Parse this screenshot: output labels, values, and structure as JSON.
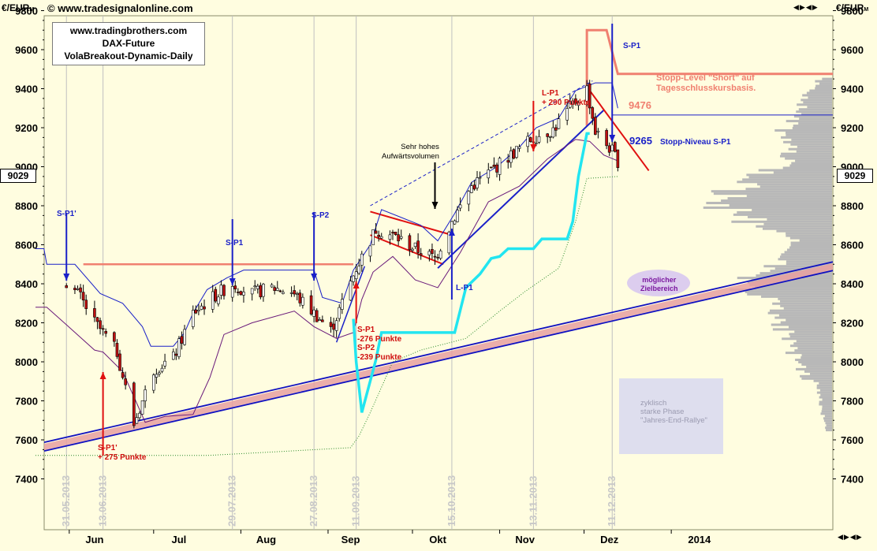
{
  "header": {
    "left_unit": "€/EUR",
    "left_unit_sub": "M",
    "copyright": "© www.tradesignalonline.com",
    "right_unit": "€/EUR",
    "right_unit_sub": "M",
    "nav_buttons": "◀▶◀▶",
    "corner_buttons": "◀▶◀▶"
  },
  "title_box": {
    "line1": "www.tradingbrothers.com",
    "line2": "DAX-Future",
    "line3": "VolaBreakout-Dynamic-Daily"
  },
  "price_tag_left": "9029",
  "price_tag_right": "9029",
  "colors": {
    "background": "#fffde0",
    "resistance": "#f08070",
    "trendline_blue": "#1010c0",
    "trendline_pink": "#e8a0a0",
    "indicator_cyan": "#22e5f0",
    "signal_blue": "#1a20c8",
    "signal_red": "#e01010",
    "volume_gray": "#b8b8b8",
    "envelope_purple": "#6a1a7a"
  },
  "annotations": {
    "sp1_prime": "S-P1'",
    "sp1_first": "S-P1",
    "sp2": "S-P2",
    "lp1_blue": "L-P1",
    "sp1_top": "S-P1",
    "sp1_red": "S-P1\n-276 Punkte",
    "sp2_red": "S-P2\n-239 Punkte",
    "sp1_prime_red": "S-P1'\n+ 275 Punkte",
    "lp1_red": "L-P1\n+ 290 Punkte",
    "volume_note": "Sehr hohes\nAufwärtsvolumen",
    "stop_short": "Stopp-Level \"Short\" auf\nTagesschlusskursbasis.",
    "stop_short_value": "9476",
    "stop_sp1_value": "9265",
    "stop_sp1_label": "Stopp-Niveau S-P1",
    "target_zone": "möglicher\nZielbereich",
    "cyclic_phase": "zyklisch\nstarke Phase\n\"Jahres-End-Rallye\""
  },
  "chart_data": {
    "type": "candlestick",
    "title": "DAX-Future VolaBreakout-Dynamic-Daily",
    "ylim": [
      7200,
      10050
    ],
    "y_ticks": [
      7400,
      7600,
      7800,
      8000,
      8200,
      8400,
      8600,
      8800,
      9000,
      9200,
      9400,
      9600,
      9800
    ],
    "y_tick_labels": [
      "7400",
      "7600",
      "7800",
      "8000",
      "8200",
      "8400",
      "8600",
      "8800",
      "9000",
      "9200",
      "9400",
      "9600",
      "9800"
    ],
    "x_month_labels": [
      "Jun",
      "Jul",
      "Aug",
      "Sep",
      "Okt",
      "Nov",
      "Dez",
      "2014"
    ],
    "x_signal_dates": [
      "31.05.2013",
      "13.06.2013",
      "29.07.2013",
      "27.08.2013",
      "11.09.2013",
      "15.10.2013",
      "13.11.2013",
      "11.12.2013"
    ],
    "grid": "vertical lines at signal dates",
    "close_series": [
      {
        "date": "2013-05-31",
        "close": 8410
      },
      {
        "date": "2013-06-05",
        "close": 8330
      },
      {
        "date": "2013-06-10",
        "close": 8200
      },
      {
        "date": "2013-06-13",
        "close": 8150
      },
      {
        "date": "2013-06-18",
        "close": 8050
      },
      {
        "date": "2013-06-24",
        "close": 7680
      },
      {
        "date": "2013-07-01",
        "close": 7960
      },
      {
        "date": "2013-07-08",
        "close": 8020
      },
      {
        "date": "2013-07-15",
        "close": 8250
      },
      {
        "date": "2013-07-22",
        "close": 8330
      },
      {
        "date": "2013-07-29",
        "close": 8400
      },
      {
        "date": "2013-08-05",
        "close": 8350
      },
      {
        "date": "2013-08-12",
        "close": 8380
      },
      {
        "date": "2013-08-19",
        "close": 8360
      },
      {
        "date": "2013-08-27",
        "close": 8250
      },
      {
        "date": "2013-09-02",
        "close": 8160
      },
      {
        "date": "2013-09-06",
        "close": 8300
      },
      {
        "date": "2013-09-11",
        "close": 8480
      },
      {
        "date": "2013-09-18",
        "close": 8680
      },
      {
        "date": "2013-09-25",
        "close": 8640
      },
      {
        "date": "2013-10-02",
        "close": 8580
      },
      {
        "date": "2013-10-09",
        "close": 8530
      },
      {
        "date": "2013-10-15",
        "close": 8720
      },
      {
        "date": "2013-10-22",
        "close": 8900
      },
      {
        "date": "2013-10-29",
        "close": 8980
      },
      {
        "date": "2013-11-05",
        "close": 9060
      },
      {
        "date": "2013-11-13",
        "close": 9150
      },
      {
        "date": "2013-11-20",
        "close": 9190
      },
      {
        "date": "2013-11-27",
        "close": 9320
      },
      {
        "date": "2013-12-02",
        "close": 9400
      },
      {
        "date": "2013-12-05",
        "close": 9180
      },
      {
        "date": "2013-12-11",
        "close": 9080
      },
      {
        "date": "2013-12-13",
        "close": 9029
      }
    ],
    "levels": {
      "resistance_long": 8500,
      "stop_short": 9476,
      "stop_sp1": 9265
    },
    "volume_profile": "horizontal volume histogram on the right side",
    "legend": "none"
  }
}
